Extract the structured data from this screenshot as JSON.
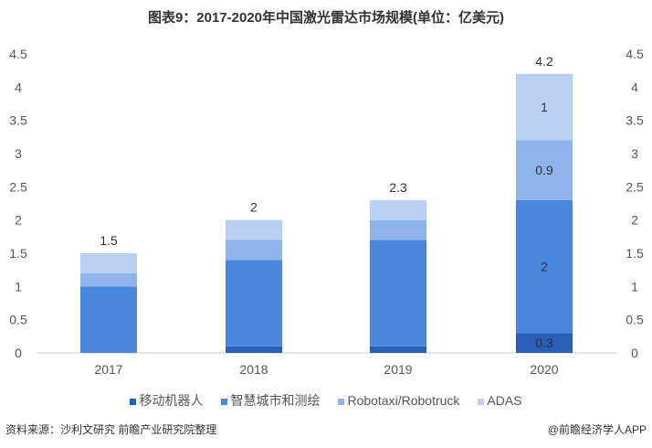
{
  "title": "图表9：2017-2020年中国激光雷达市场规模(单位：亿美元)",
  "source": "资料来源：沙利文研究 前瞻产业研究院整理",
  "brand": "@前瞻经济学人APP",
  "chart_data": {
    "type": "bar",
    "stacked": true,
    "title": "图表9：2017-2020年中国激光雷达市场规模(单位：亿美元)",
    "categories": [
      "2017",
      "2018",
      "2019",
      "2020"
    ],
    "ylim": [
      0,
      4.5
    ],
    "yticks": [
      "0",
      "0.5",
      "1",
      "1.5",
      "2",
      "2.5",
      "3",
      "3.5",
      "4",
      "4.5"
    ],
    "series": [
      {
        "name": "移动机器人",
        "values": [
          0,
          0.1,
          0.1,
          0.3
        ],
        "color": "#2a5fb8"
      },
      {
        "name": "智慧城市和测绘",
        "values": [
          1.0,
          1.3,
          1.6,
          2
        ],
        "color": "#4a88e0"
      },
      {
        "name": "Robotaxi/Robotruck",
        "values": [
          0.2,
          0.3,
          0.3,
          0.9
        ],
        "color": "#8fb4ec"
      },
      {
        "name": "ADAS",
        "values": [
          0.3,
          0.3,
          0.3,
          1
        ],
        "color": "#b9d0f3"
      }
    ],
    "totals": [
      "1.5",
      "2",
      "2.3",
      "4.2"
    ],
    "segment_labels_2020": [
      "0.3",
      "2",
      "0.9",
      "1"
    ],
    "legend": "bottom"
  }
}
